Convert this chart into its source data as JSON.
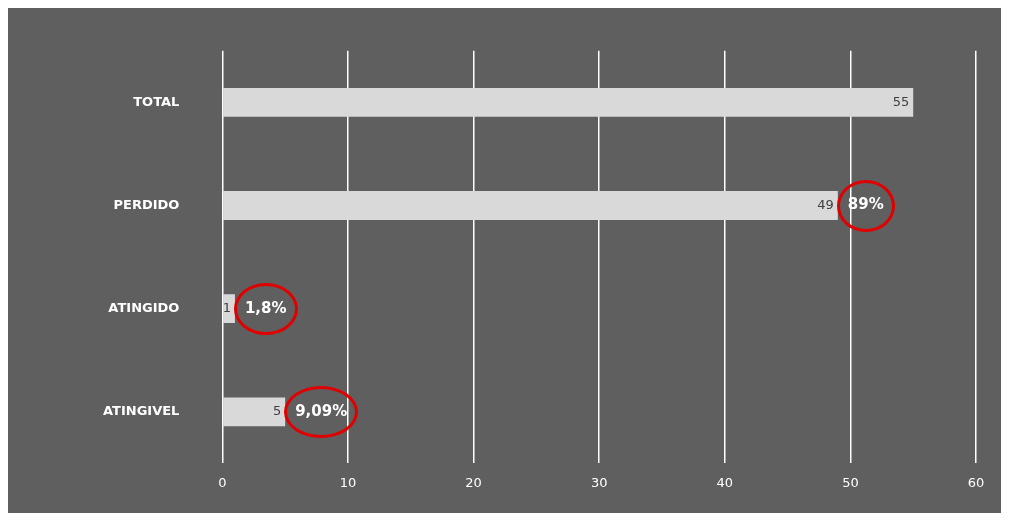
{
  "chart_data": {
    "type": "bar",
    "orientation": "horizontal",
    "categories": [
      "TOTAL",
      "PERDIDO",
      "ATINGIDO",
      "ATINGIVEL"
    ],
    "values": [
      55,
      49,
      1,
      5
    ],
    "color": "#d9d9d9",
    "xlim": [
      0,
      60
    ],
    "xticks": [
      0,
      10,
      20,
      30,
      40,
      50,
      60
    ],
    "grid": "x",
    "legend": false,
    "data_labels": true,
    "annotations": [
      {
        "text": "89%",
        "x": 49,
        "y": "PERDIDO"
      },
      {
        "text": "1,8%",
        "x": 1,
        "y": "ATINGIDO"
      },
      {
        "text": "9,09%",
        "x": 5,
        "y": "ATINGIVEL"
      }
    ]
  }
}
